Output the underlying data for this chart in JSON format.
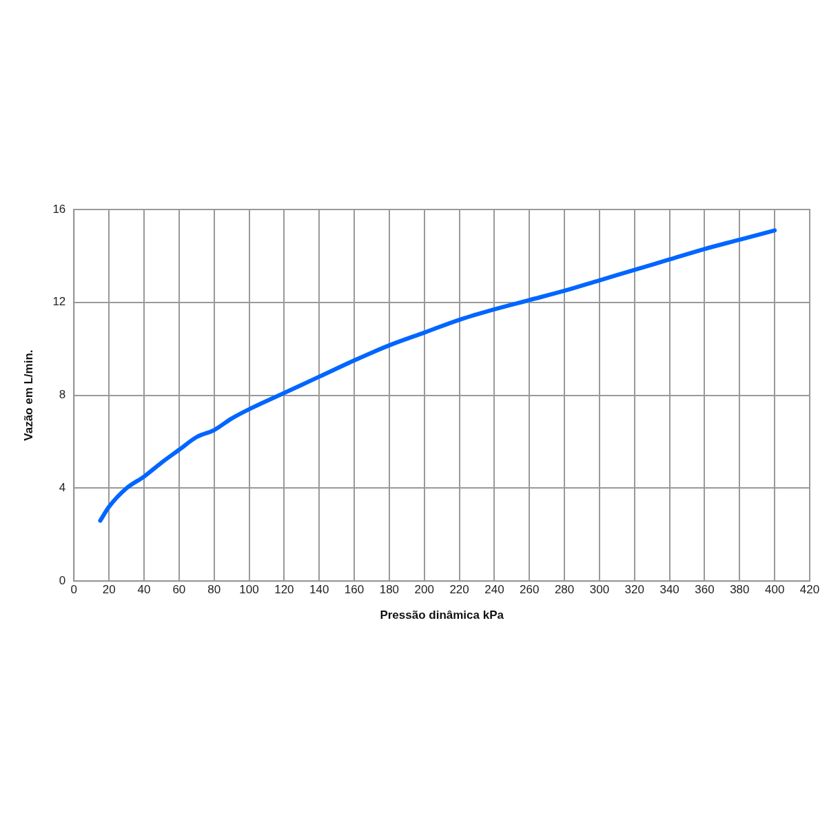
{
  "chart_data": {
    "type": "line",
    "xlabel": "Pressão dinâmica kPa",
    "ylabel": "Vazão em L/min.",
    "x": [
      15,
      20,
      30,
      40,
      50,
      60,
      70,
      80,
      90,
      100,
      120,
      140,
      160,
      180,
      200,
      220,
      240,
      260,
      280,
      300,
      320,
      340,
      360,
      380,
      400
    ],
    "series": [
      {
        "color": "#0066ff",
        "values": [
          2.6,
          3.2,
          4.0,
          4.5,
          5.1,
          5.65,
          6.2,
          6.5,
          7.0,
          7.4,
          8.1,
          8.8,
          9.5,
          10.15,
          10.7,
          11.25,
          11.7,
          12.1,
          12.5,
          12.95,
          13.4,
          13.85,
          14.3,
          14.7,
          15.1
        ]
      }
    ],
    "xlim": [
      0,
      420
    ],
    "xticks": [
      0,
      20,
      40,
      60,
      80,
      100,
      120,
      140,
      160,
      180,
      200,
      220,
      240,
      260,
      280,
      300,
      320,
      340,
      360,
      380,
      400,
      420
    ],
    "ylim": [
      0,
      16
    ],
    "yticks": [
      0,
      4,
      8,
      12,
      16
    ],
    "grid": true,
    "legend": false,
    "marker": "none",
    "line_style": "solid"
  }
}
